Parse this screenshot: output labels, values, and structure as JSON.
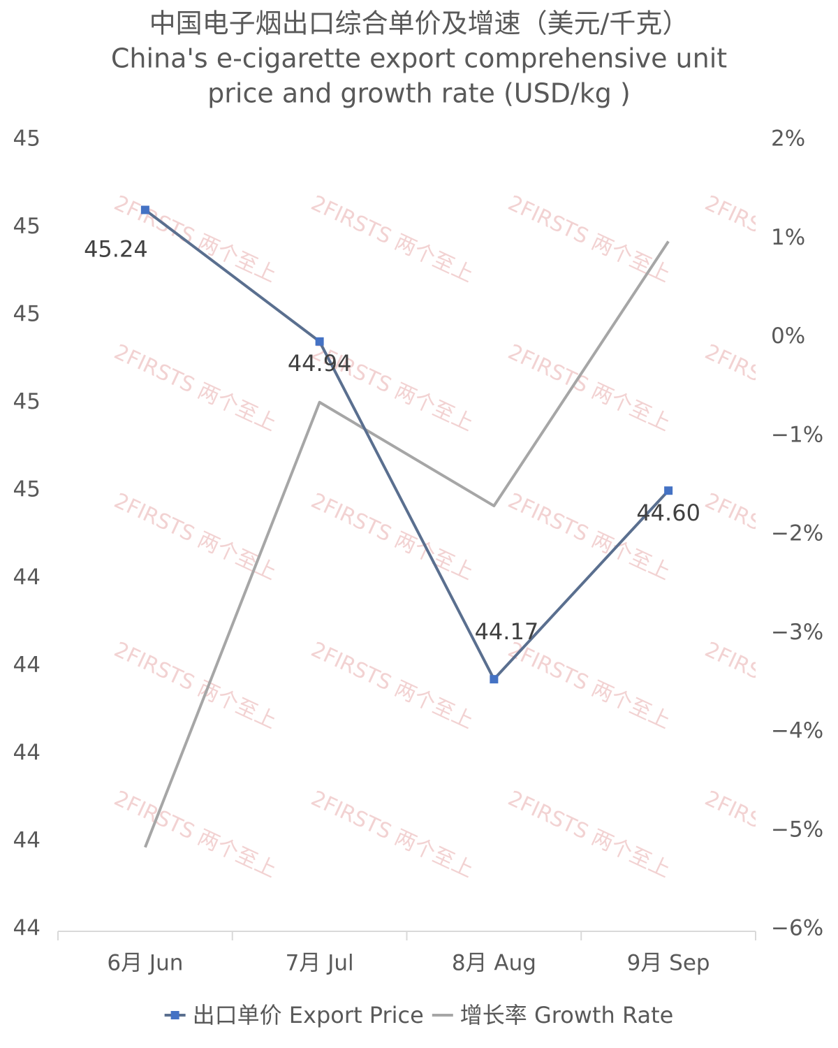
{
  "chart_data": {
    "type": "line",
    "title": "中国电子烟出口综合单价及增速（美元/千克）",
    "subtitle": [
      "China's e-cigarette export comprehensive unit",
      "price and growth rate (USD/kg )"
    ],
    "watermark": "2FIRSTS 两个至上",
    "categories": [
      "6月 Jun",
      "7月 Jul",
      "8月 Aug",
      "9月 Sep"
    ],
    "series": [
      {
        "name": "出口单价 Export Price",
        "color": "#5a6f8f",
        "marker_color": "#4472c4",
        "values": [
          45.24,
          44.94,
          44.17,
          44.6
        ],
        "value_labels": [
          "45.24",
          "44.94",
          "44.17",
          "44.60"
        ]
      },
      {
        "name": "增长率 Growth Rate",
        "color": "#a6a6a6",
        "axis": "y2",
        "values": [
          -5.17,
          -0.66,
          -1.71,
          0.97
        ]
      }
    ],
    "ylim": [
      43.6,
      45.4
    ],
    "yticks": [
      {
        "value": 43.6,
        "label": "44"
      },
      {
        "value": 43.8,
        "label": "44"
      },
      {
        "value": 44.0,
        "label": "44"
      },
      {
        "value": 44.2,
        "label": "44"
      },
      {
        "value": 44.4,
        "label": "44"
      },
      {
        "value": 44.6,
        "label": "45"
      },
      {
        "value": 44.8,
        "label": "45"
      },
      {
        "value": 45.0,
        "label": "45"
      },
      {
        "value": 45.2,
        "label": "45"
      },
      {
        "value": 45.4,
        "label": "45"
      }
    ],
    "y2lim": [
      -6,
      2
    ],
    "y2ticks": [
      {
        "value": -6,
        "label": "−6%"
      },
      {
        "value": -5,
        "label": "−5%"
      },
      {
        "value": -4,
        "label": "−4%"
      },
      {
        "value": -3,
        "label": "−3%"
      },
      {
        "value": -2,
        "label": "−2%"
      },
      {
        "value": -1,
        "label": "−1%"
      },
      {
        "value": 0,
        "label": "0%"
      },
      {
        "value": 1,
        "label": "1%"
      },
      {
        "value": 2,
        "label": "2%"
      }
    ],
    "grid": false
  }
}
